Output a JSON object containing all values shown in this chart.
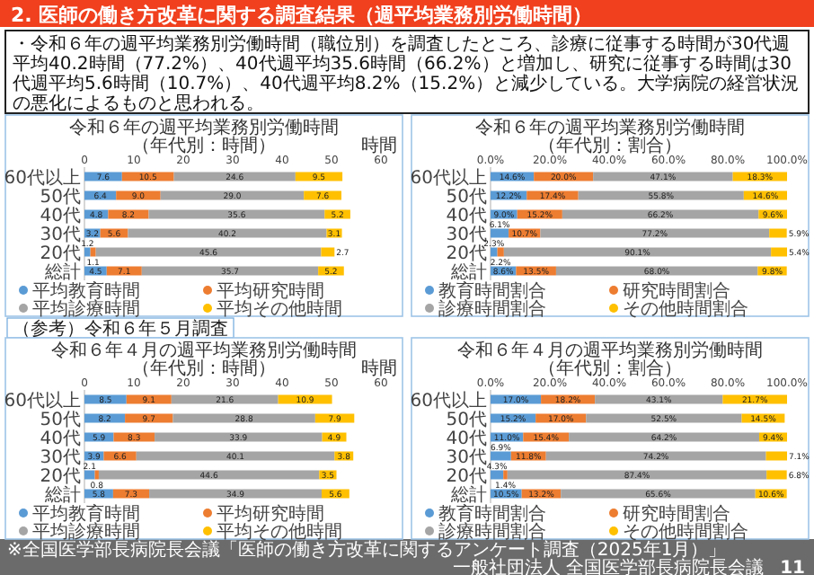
{
  "chart_data": [
    {
      "type": "other",
      "title": "2. 医師の働き方改革に関する調査結果（週平均業務別労働時間）",
      "annotations": [
        "・令和６年の週平均業務別労働時間（職位別）を調査したところ、診療に従事する時間が30代週平均40.2時間（77.2%）、40代週平均35.6時間（66.2%）と増加し、研究に従事する時間は30代週平均5.6時間（10.7%）、40代週平均8.2%（15.2%）と減少している。大学病院の経営状況の悪化によるものと思われる。",
        "（参考）令和６年５月調査",
        "※全国医学部長病院長会議「医師の働き方改革に関するアンケート調査（2025年1月）」",
        "一般社団法人 全国医学部長病院長会議",
        "11"
      ]
    },
    {
      "type": "bar",
      "orientation": "horizontal",
      "stacked": true,
      "legend": "bottom",
      "title": "令和６年の週平均業務別労働時間",
      "subtitle": "（年代別：時間）",
      "xlabel": "時間",
      "categories": [
        "60代以上",
        "50代",
        "40代",
        "30代",
        "20代",
        "総計"
      ],
      "xlim": [
        0,
        60
      ],
      "xticks": [
        0,
        10,
        20,
        30,
        40,
        50,
        60
      ],
      "series": [
        {
          "name": "平均教育時間",
          "color": "#5b9bd5",
          "values": [
            7.6,
            6.4,
            4.8,
            3.2,
            1.2,
            4.5
          ],
          "value_labels": [
            "7.6",
            "6.4",
            "4.8",
            "3.2",
            "1.2",
            "4.5"
          ]
        },
        {
          "name": "平均研究時間",
          "color": "#ed7d31",
          "values": [
            10.5,
            9.0,
            8.2,
            5.6,
            1.1,
            7.1
          ],
          "value_labels": [
            "10.5",
            "9.0",
            "8.2",
            "5.6",
            "1.1",
            "7.1"
          ]
        },
        {
          "name": "平均診療時間",
          "color": "#a5a5a5",
          "values": [
            24.6,
            29.0,
            35.6,
            40.2,
            45.6,
            35.7
          ],
          "value_labels": [
            "24.6",
            "29.0",
            "35.6",
            "40.2",
            "45.6",
            "35.7"
          ]
        },
        {
          "name": "平均その他時間",
          "color": "#ffc000",
          "values": [
            9.5,
            7.6,
            5.2,
            3.1,
            2.7,
            5.2
          ],
          "value_labels": [
            "9.5",
            "7.6",
            "5.2",
            "3.1",
            "2.7",
            "5.2"
          ]
        }
      ]
    },
    {
      "type": "bar",
      "orientation": "horizontal",
      "stacked": true,
      "legend": "bottom",
      "title": "令和６年の週平均業務別労働時間",
      "subtitle": "（年代別：割合）",
      "categories": [
        "60代以上",
        "50代",
        "40代",
        "30代",
        "20代",
        "総計"
      ],
      "xlim": [
        0,
        100
      ],
      "xticks": [
        {
          "value": 0,
          "label": "0.0%"
        },
        {
          "value": 20,
          "label": "20.0%"
        },
        {
          "value": 40,
          "label": "40.0%"
        },
        {
          "value": 60,
          "label": "60.0%"
        },
        {
          "value": 80,
          "label": "80.0%"
        },
        {
          "value": 100,
          "label": "100.0%"
        }
      ],
      "series": [
        {
          "name": "教育時間割合",
          "color": "#5b9bd5",
          "values": [
            14.6,
            12.2,
            9.0,
            6.1,
            2.3,
            8.6
          ],
          "value_labels": [
            "14.6%",
            "12.2%",
            "9.0%",
            "6.1%",
            "2.3%",
            "8.6%"
          ]
        },
        {
          "name": "研究時間割合",
          "color": "#ed7d31",
          "values": [
            20.0,
            17.4,
            15.2,
            10.7,
            2.2,
            13.5
          ],
          "value_labels": [
            "20.0%",
            "17.4%",
            "15.2%",
            "10.7%",
            "2.2%",
            "13.5%"
          ]
        },
        {
          "name": "診療時間割合",
          "color": "#a5a5a5",
          "values": [
            47.1,
            55.8,
            66.2,
            77.2,
            90.1,
            68.0
          ],
          "value_labels": [
            "47.1%",
            "55.8%",
            "66.2%",
            "77.2%",
            "90.1%",
            "68.0%"
          ]
        },
        {
          "name": "その他時間割合",
          "color": "#ffc000",
          "values": [
            18.3,
            14.6,
            9.6,
            5.9,
            5.4,
            9.8
          ],
          "value_labels": [
            "18.3%",
            "14.6%",
            "9.6%",
            "5.9%",
            "5.4%",
            "9.8%"
          ]
        }
      ]
    },
    {
      "type": "bar",
      "orientation": "horizontal",
      "stacked": true,
      "legend": "bottom",
      "title": "令和６年４月の週平均業務別労働時間",
      "subtitle": "（年代別：時間）",
      "xlabel": "時間",
      "categories": [
        "60代以上",
        "50代",
        "40代",
        "30代",
        "20代",
        "総計"
      ],
      "xlim": [
        0,
        60
      ],
      "xticks": [
        0,
        10,
        20,
        30,
        40,
        50,
        60
      ],
      "series": [
        {
          "name": "平均教育時間",
          "color": "#5b9bd5",
          "values": [
            8.5,
            8.2,
            5.9,
            3.9,
            2.1,
            5.8
          ],
          "value_labels": [
            "8.5",
            "8.2",
            "5.9",
            "3.9",
            "2.1",
            "5.8"
          ]
        },
        {
          "name": "平均研究時間",
          "color": "#ed7d31",
          "values": [
            9.1,
            9.7,
            8.3,
            6.6,
            0.8,
            7.3
          ],
          "value_labels": [
            "9.1",
            "9.7",
            "8.3",
            "6.6",
            "0.8",
            "7.3"
          ]
        },
        {
          "name": "平均診療時間",
          "color": "#a5a5a5",
          "values": [
            21.6,
            28.8,
            33.9,
            40.1,
            44.6,
            34.9
          ],
          "value_labels": [
            "21.6",
            "28.8",
            "33.9",
            "40.1",
            "44.6",
            "34.9"
          ]
        },
        {
          "name": "平均その他時間",
          "color": "#ffc000",
          "values": [
            10.9,
            7.9,
            4.9,
            3.8,
            3.5,
            5.6
          ],
          "value_labels": [
            "10.9",
            "7.9",
            "4.9",
            "3.8",
            "3.5",
            "5.6"
          ]
        }
      ]
    },
    {
      "type": "bar",
      "orientation": "horizontal",
      "stacked": true,
      "legend": "bottom",
      "title": "令和６年４月の週平均業務別労働時間",
      "subtitle": "（年代別：割合）",
      "categories": [
        "60代以上",
        "50代",
        "40代",
        "30代",
        "20代",
        "総計"
      ],
      "xlim": [
        0,
        100
      ],
      "xticks": [
        {
          "value": 0,
          "label": "0.0%"
        },
        {
          "value": 20,
          "label": "20.0%"
        },
        {
          "value": 40,
          "label": "40.0%"
        },
        {
          "value": 60,
          "label": "60.0%"
        },
        {
          "value": 80,
          "label": "80.0%"
        },
        {
          "value": 100,
          "label": "100.0%"
        }
      ],
      "series": [
        {
          "name": "教育時間割合",
          "color": "#5b9bd5",
          "values": [
            17.0,
            15.2,
            11.0,
            6.9,
            4.3,
            10.5
          ],
          "value_labels": [
            "17.0%",
            "15.2%",
            "11.0%",
            "6.9%",
            "4.3%",
            "10.5%"
          ]
        },
        {
          "name": "研究時間割合",
          "color": "#ed7d31",
          "values": [
            18.2,
            17.0,
            15.4,
            11.8,
            1.4,
            13.2
          ],
          "value_labels": [
            "18.2%",
            "17.0%",
            "15.4%",
            "11.8%",
            "1.4%",
            "13.2%"
          ]
        },
        {
          "name": "診療時間割合",
          "color": "#a5a5a5",
          "values": [
            43.1,
            52.5,
            64.2,
            74.2,
            87.4,
            65.6
          ],
          "value_labels": [
            "43.1%",
            "52.5%",
            "64.2%",
            "74.2%",
            "87.4%",
            "65.6%"
          ]
        },
        {
          "name": "その他時間割合",
          "color": "#ffc000",
          "values": [
            21.7,
            14.5,
            9.4,
            7.1,
            6.8,
            10.6
          ],
          "value_labels": [
            "21.7%",
            "14.5%",
            "9.4%",
            "7.1%",
            "6.8%",
            "10.6%"
          ]
        }
      ]
    }
  ]
}
